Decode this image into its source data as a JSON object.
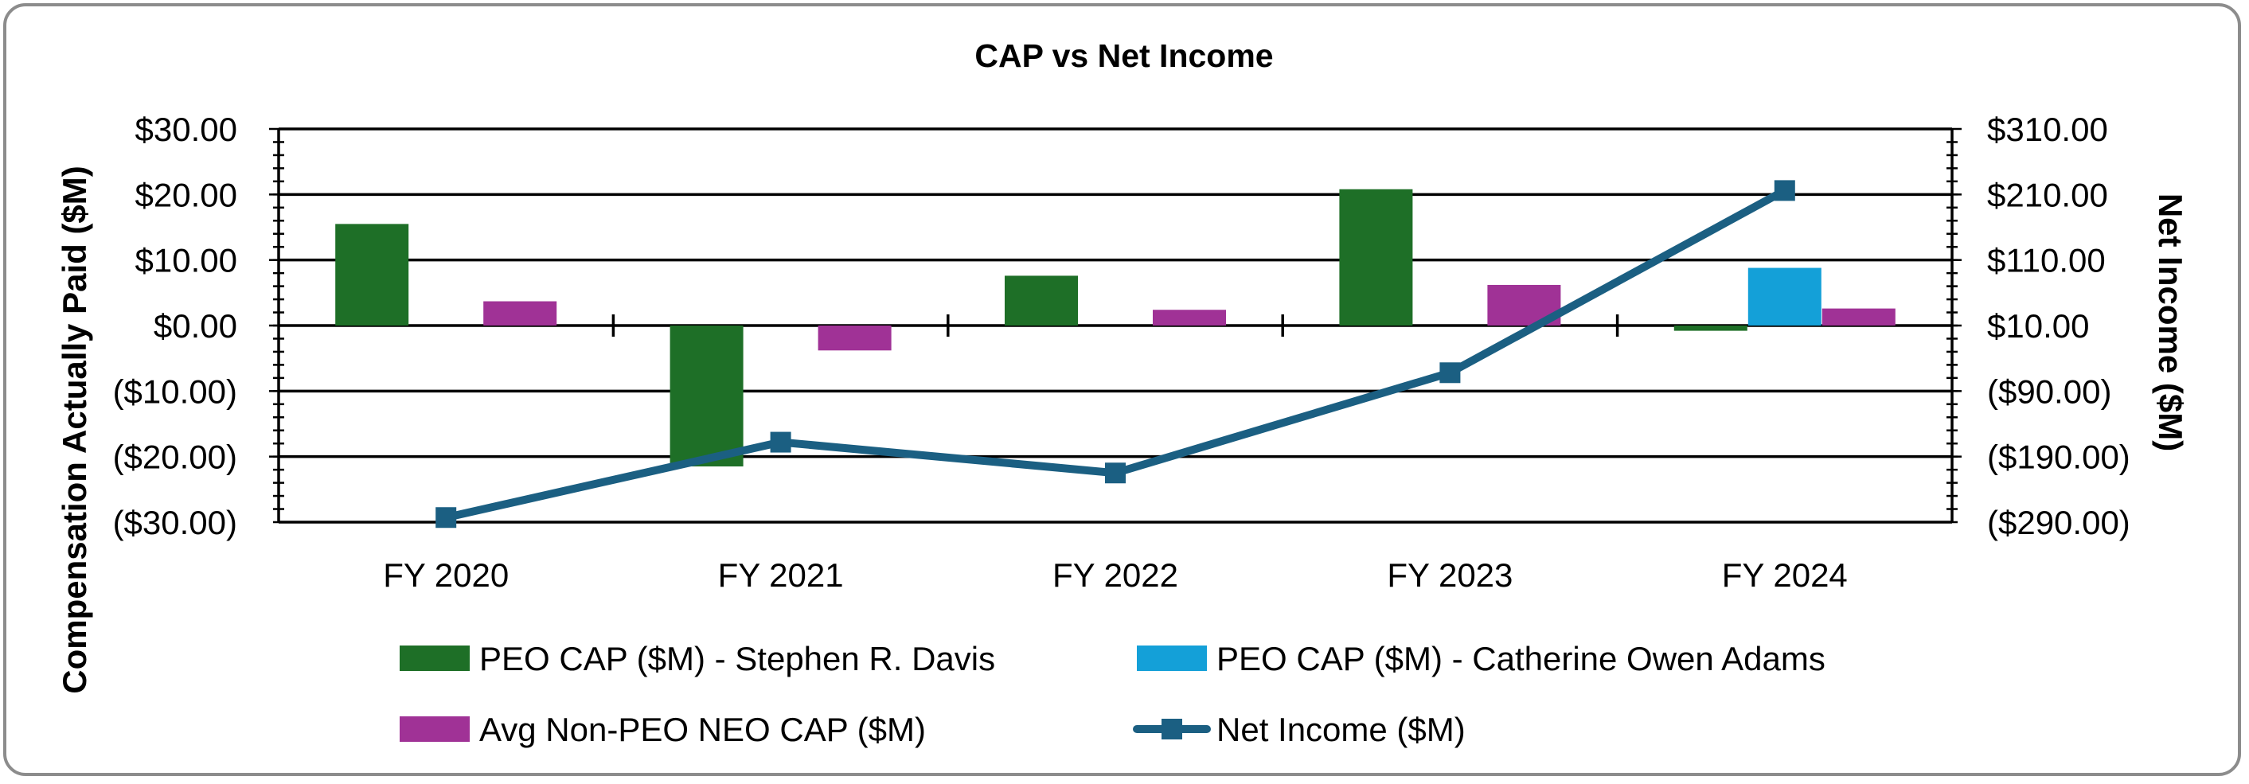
{
  "chart_data": {
    "type": "bar",
    "title": "CAP vs Net Income",
    "ylabel": "Compensation Actually Paid ($M)",
    "y2label": "Net Income ($M)",
    "categories": [
      "FY 2020",
      "FY 2021",
      "FY 2022",
      "FY 2023",
      "FY 2024"
    ],
    "ylim": [
      -30,
      30
    ],
    "y2lim": [
      -290,
      310
    ],
    "y_ticks": [
      "$30.00",
      "$20.00",
      "$10.00",
      "$0.00",
      "($10.00)",
      "($20.00)",
      "($30.00)"
    ],
    "y2_ticks": [
      "$310.00",
      "$210.00",
      "$110.00",
      "$10.00",
      "($90.00)",
      "($190.00)",
      "($290.00)"
    ],
    "grid": true,
    "legend_position": "bottom",
    "series": [
      {
        "name": "PEO CAP ($M) - Stephen R. Davis",
        "type": "bar",
        "axis": "left",
        "color": "#1e6f27",
        "values": [
          15.5,
          -21.5,
          7.6,
          20.8,
          -0.8
        ]
      },
      {
        "name": "PEO CAP ($M) - Catherine Owen Adams",
        "type": "bar",
        "axis": "left",
        "color": "#14a0d8",
        "values": [
          null,
          null,
          null,
          null,
          8.8
        ]
      },
      {
        "name": "Avg Non-PEO NEO CAP ($M)",
        "type": "bar",
        "axis": "left",
        "color": "#a03296",
        "values": [
          3.7,
          -3.8,
          2.4,
          6.2,
          2.6
        ]
      },
      {
        "name": "Net Income ($M)",
        "type": "line",
        "axis": "right",
        "color": "#1b5f82",
        "marker": "square",
        "values": [
          -283,
          -168,
          -215,
          -62,
          216
        ]
      }
    ]
  }
}
